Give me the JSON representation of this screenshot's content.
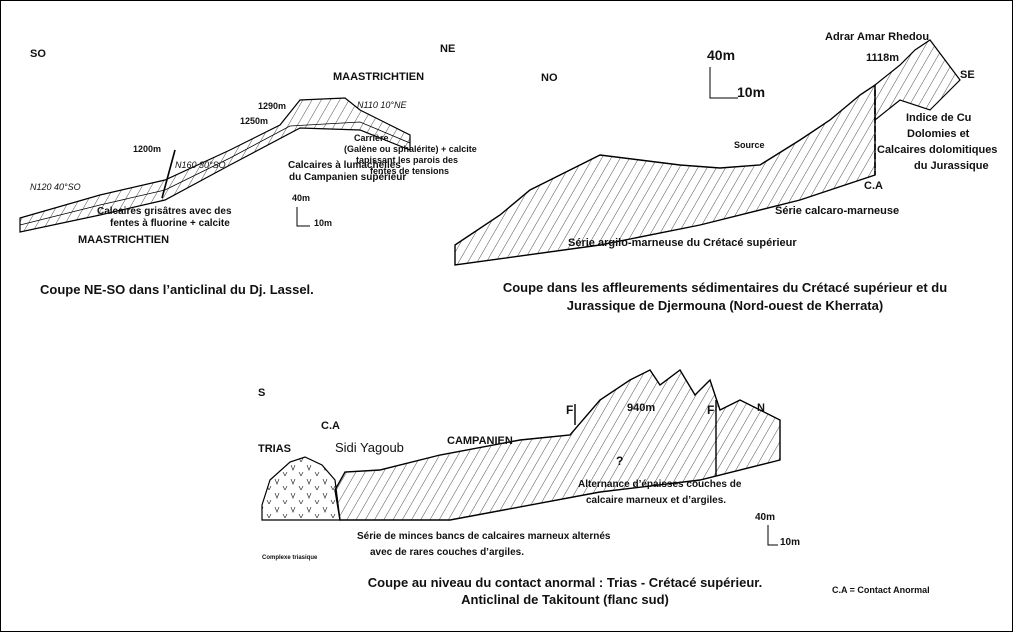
{
  "panels": [
    {
      "labels": [
        "SO",
        "NE",
        "MAASTRICHTIEN",
        "1290m",
        "N110 10°NE",
        "1250m",
        "Carrière",
        "(Galène ou sphalérite) + calcite",
        "tapissant les parois des",
        "fentes de tensions",
        "1200m",
        "Calcaires à lumachelles",
        "du Campanien supérieur",
        "N160 30°SO",
        "N120 40°SO",
        "Calcaires grisâtres avec des",
        "fentes à fluorine + calcite",
        "40m",
        "10m",
        "MAASTRICHTIEN"
      ],
      "caption": [
        "Coupe NE-SO dans l’anticlinal du Dj. Lassel."
      ]
    },
    {
      "labels": [
        "NO",
        "40m",
        "10m",
        "Adrar Amar Rhedou",
        "1118m",
        "SE",
        "Source",
        "Indice de Cu",
        "Dolomies et",
        "Calcaires dolomitiques",
        "du Jurassique",
        "C.A",
        "Série calcaro-marneuse",
        "Série argilo-marneuse du Crétacé supérieur"
      ],
      "caption": [
        "Coupe dans les affleurements sédimentaires du Crétacé supérieur et du",
        "Jurassique de Djermouna (Nord-ouest de Kherrata)"
      ]
    },
    {
      "labels": [
        "S",
        "C.A",
        "TRIAS",
        "Sidi Yagoub",
        "CAMPANIEN",
        "F",
        "940m",
        "F",
        "N",
        "?",
        "Alternance d’épaisses couches de",
        "calcaire marneux et d’argiles.",
        "40m",
        "10m",
        "Série de minces bancs de calcaires marneux alternés",
        "avec de rares couches d’argiles.",
        "Complexe triasique"
      ],
      "caption": [
        "Coupe au niveau du contact anormal : Trias - Crétacé supérieur.",
        "Anticlinal de Takitount (flanc sud)"
      ]
    }
  ],
  "legend": "C.A = Contact Anormal"
}
